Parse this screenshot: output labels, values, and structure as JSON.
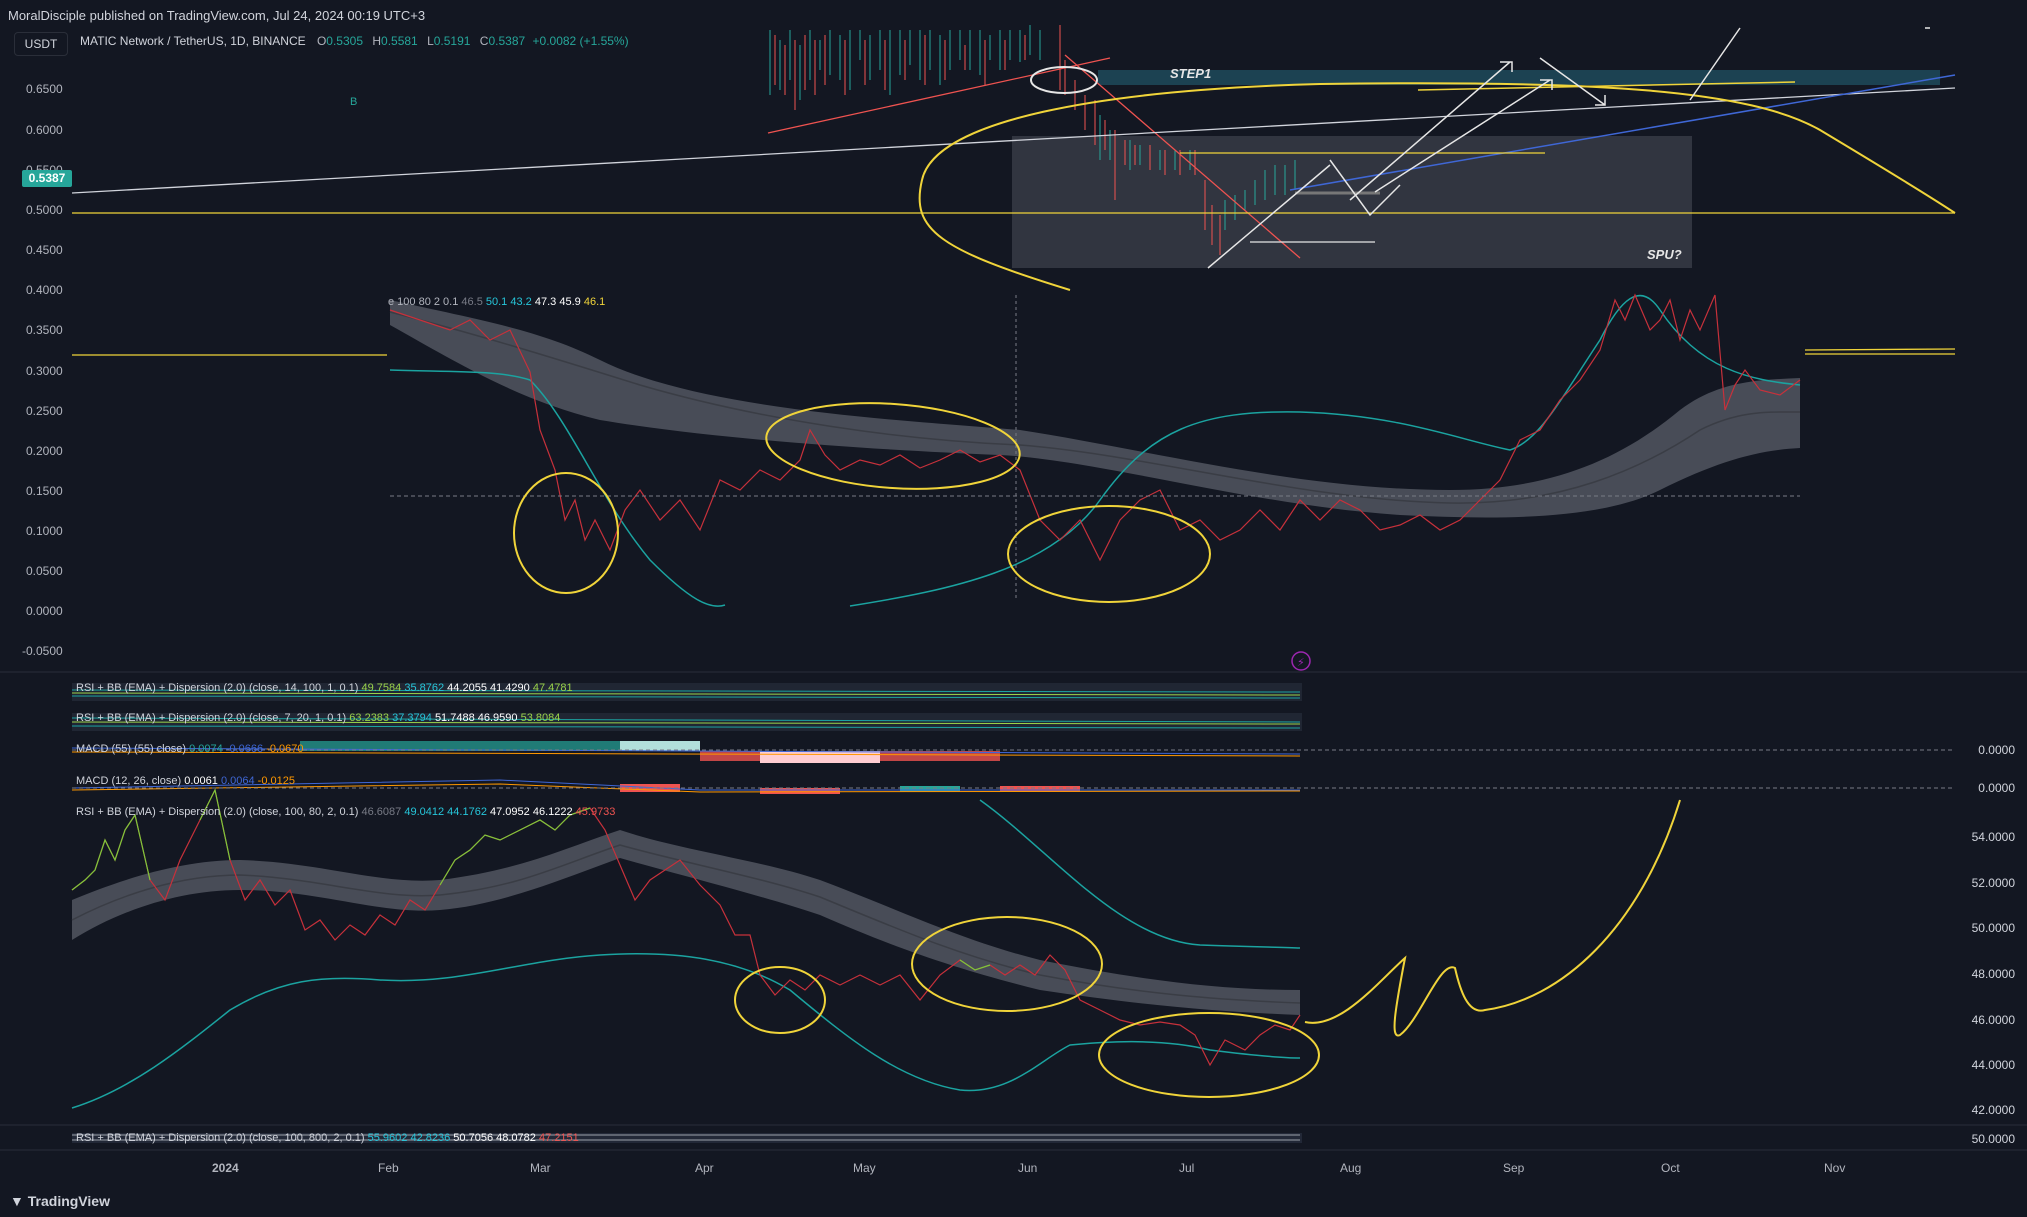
{
  "header": {
    "published": "MoralDisciple published on TradingView.com, Jul 24, 2024 00:19 UTC+3",
    "currency": "USDT",
    "symbol": "MATIC Network / TetherUS, 1D, BINANCE",
    "open_k": "O",
    "open": "0.5305",
    "high_k": "H",
    "high": "0.5581",
    "low_k": "L",
    "low": "0.5191",
    "close_k": "C",
    "close": "0.5387",
    "change": "+0.0082 (+1.55%)"
  },
  "price_axis": [
    "0.6500",
    "0.6000",
    "0.5500",
    "0.5000",
    "0.4500",
    "0.4000",
    "0.3500",
    "0.3000",
    "0.2500",
    "0.2000",
    "0.1500",
    "0.1000",
    "0.0500",
    "0.0000",
    "-0.0500"
  ],
  "last_price": "0.5387",
  "marker_b": "B",
  "annotations": {
    "step1": "STEP1",
    "spu": "SPU?"
  },
  "overlay_rsi": {
    "label": "e 100 80 2 0.1",
    "v1": "46.5",
    "v2": "50.1",
    "v3": "43.2",
    "v4": "47.3",
    "v5": "45.9",
    "v6": "46.1"
  },
  "panes": {
    "rsi1": {
      "label": "RSI + BB (EMA) + Dispersion (2.0) (close, 14, 100, 1, 0.1)",
      "v1": "49.7584",
      "v2": "35.8762",
      "v3": "44.2055",
      "v4": "41.4290",
      "v5": "47.4781"
    },
    "rsi2": {
      "label": "RSI + BB (EMA) + Dispersion (2.0) (close, 7, 20, 1, 0.1)",
      "v1": "63.2383",
      "v2": "37.3794",
      "v3": "51.7488",
      "v4": "46.9590",
      "v5": "53.8084"
    },
    "macd1": {
      "label": "MACD (55) (55) close)",
      "v1": "0.0074",
      "v2": "-0.0666",
      "v3": "-0.0670",
      "axis": "0.0000"
    },
    "macd2": {
      "label": "MACD (12, 26, close)",
      "v1": "0.0061",
      "v2": "0.0064",
      "v3": "-0.0125",
      "axis": "0.0000"
    },
    "rsi3": {
      "label": "RSI + BB (EMA) + Dispersion (2.0) (close, 100, 80, 2, 0.1)",
      "v0": "46.6087",
      "v1": "49.0412",
      "v2": "44.1762",
      "v3": "47.0952",
      "v4": "46.1222",
      "v5": "45.9733"
    },
    "rsi4": {
      "label": "RSI + BB (EMA) + Dispersion (2.0) (close, 100, 800, 2, 0.1)",
      "v1": "55.9602",
      "v2": "42.8236",
      "v3": "50.7056",
      "v4": "48.0782",
      "v5": "47.2151",
      "axis": "50.0000"
    }
  },
  "rsi3_axis": [
    "54.0000",
    "52.0000",
    "50.0000",
    "48.0000",
    "46.0000",
    "44.0000",
    "42.0000"
  ],
  "time_axis": [
    "2024",
    "Feb",
    "Mar",
    "Apr",
    "May",
    "Jun",
    "Jul",
    "Aug",
    "Sep",
    "Oct",
    "Nov"
  ],
  "footer": {
    "brand": "TradingView"
  },
  "colors": {
    "background": "#131722",
    "up": "#26a69a",
    "down": "#ef5350",
    "drawing": "#f0d43a",
    "band": "#555a66",
    "teal_line": "#1ba3a0"
  }
}
